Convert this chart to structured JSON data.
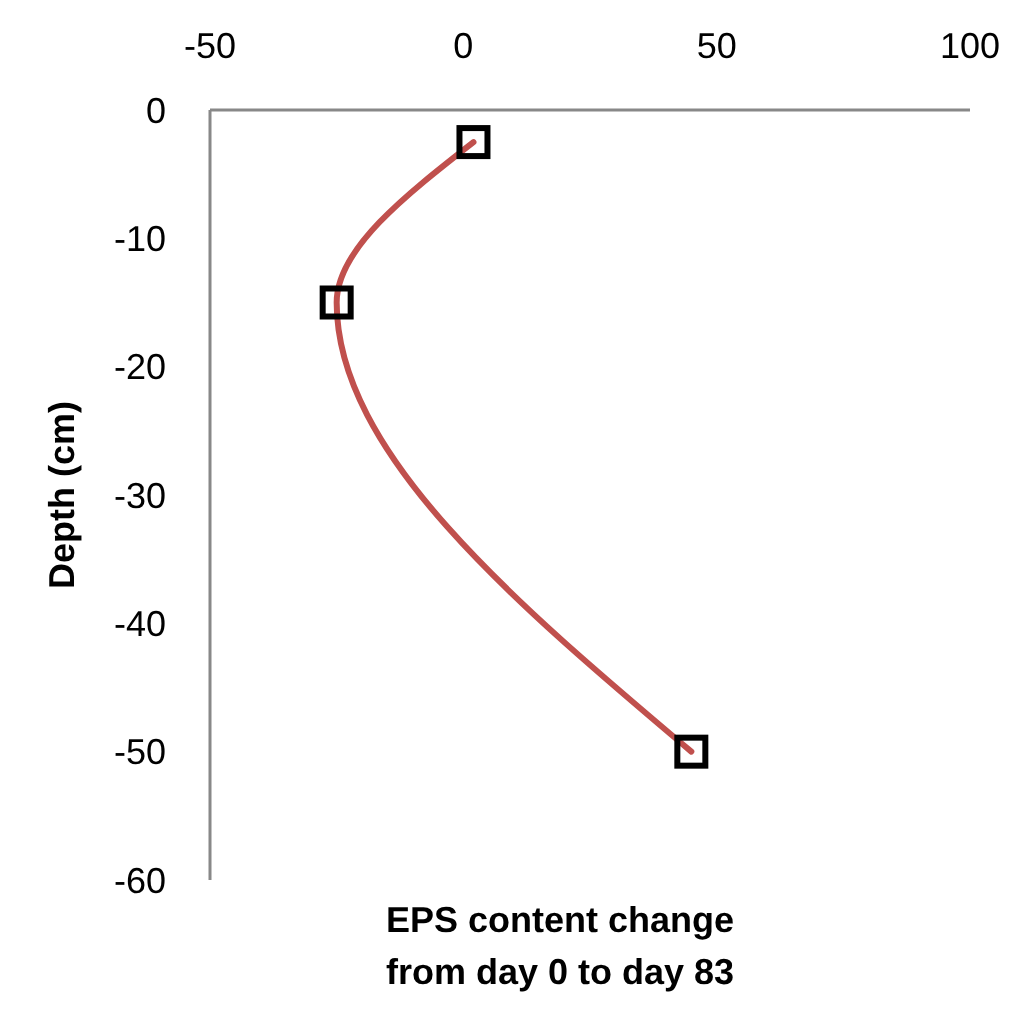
{
  "chart_data": {
    "type": "line",
    "xlabel": "EPS content change\nfrom day 0 to day 83",
    "ylabel": "Depth (cm)",
    "xlim": [
      -50,
      100
    ],
    "xticks": [
      -50,
      0,
      50,
      100
    ],
    "ylim": [
      -60,
      0
    ],
    "yticks": [
      0,
      -10,
      -20,
      -30,
      -40,
      -50,
      -60
    ],
    "x": [
      2,
      -25,
      45
    ],
    "series": [
      {
        "color": "#c0504d",
        "values": [
          -2.5,
          -15,
          -50
        ]
      }
    ],
    "marker": "square",
    "line_style": "solid",
    "grid": false
  }
}
